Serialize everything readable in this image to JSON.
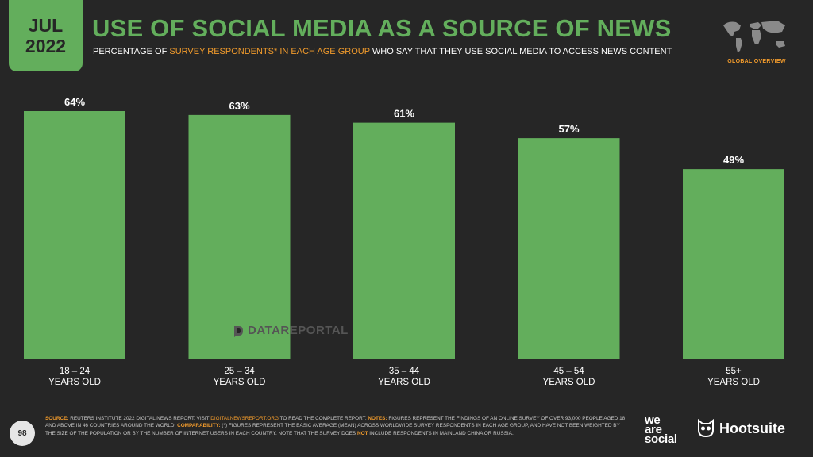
{
  "header": {
    "month": "JUL",
    "year": "2022",
    "title": "USE OF SOCIAL MEDIA AS A SOURCE OF NEWS",
    "subtitle_part1": "PERCENTAGE OF",
    "subtitle_highlight": "SURVEY RESPONDENTS* IN EACH AGE GROUP",
    "subtitle_part2": "WHO SAY THAT THEY USE SOCIAL MEDIA TO ACCESS NEWS CONTENT",
    "overview_label": "GLOBAL OVERVIEW"
  },
  "watermark": "DATAREPORTAL",
  "chart_data": {
    "type": "bar",
    "categories": [
      [
        "18 – 24",
        "YEARS OLD"
      ],
      [
        "25 – 34",
        "YEARS OLD"
      ],
      [
        "35 – 44",
        "YEARS OLD"
      ],
      [
        "45 – 54",
        "YEARS OLD"
      ],
      [
        "55+",
        "YEARS OLD"
      ]
    ],
    "values": [
      64,
      63,
      61,
      57,
      49
    ],
    "value_labels": [
      "64%",
      "63%",
      "61%",
      "57%",
      "49%"
    ],
    "ylim": [
      0,
      64
    ],
    "grid": false,
    "bar_color": "#63ae5c"
  },
  "footer": {
    "page_number": "98",
    "source_label": "SOURCE:",
    "source_text": "REUTERS INSTITUTE 2022 DIGITAL NEWS REPORT. VISIT",
    "source_link": "DIGITALNEWSREPORT.ORG",
    "source_text2": "TO READ THE COMPLETE REPORT.",
    "notes_label": "NOTES:",
    "notes_text": "FIGURES REPRESENT THE FINDINGS OF AN ONLINE SURVEY OF OVER 93,000 PEOPLE AGED 18 AND ABOVE IN 46 COUNTRIES AROUND THE WORLD.",
    "comparability_label": "COMPARABILITY:",
    "comparability_text": "(*) FIGURES REPRESENT THE BASIC AVERAGE (MEAN) ACROSS WORLDWIDE SURVEY RESPONDENTS IN EACH AGE GROUP, AND HAVE NOT BEEN WEIGHTED BY THE SIZE OF THE POPULATION OR BY THE NUMBER OF INTERNET USERS IN EACH COUNTRY. NOTE THAT THE SURVEY DOES",
    "not_word": "NOT",
    "comparability_text2": "INCLUDE RESPONDENTS IN MAINLAND CHINA OR RUSSIA.",
    "brand1_line1": "we",
    "brand1_line2": "are",
    "brand1_line3": "social",
    "brand2": "Hootsuite"
  },
  "colors": {
    "background": "#262626",
    "accent_green": "#63ae5c",
    "accent_orange": "#f39c2c"
  }
}
